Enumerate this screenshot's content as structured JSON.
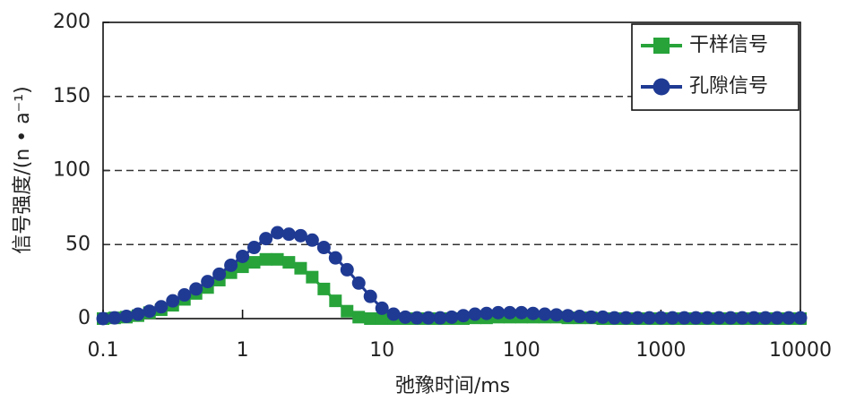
{
  "chart_data": {
    "type": "line",
    "xscale": "log",
    "xlabel": "弛豫时间/ms",
    "ylabel": "信号强度/(n • a⁻¹)",
    "x": [
      0.1,
      0.121,
      0.147,
      0.178,
      0.215,
      0.261,
      0.316,
      0.383,
      0.464,
      0.562,
      0.681,
      0.825,
      1,
      1.21,
      1.47,
      1.78,
      2.15,
      2.61,
      3.16,
      3.83,
      4.64,
      5.62,
      6.81,
      8.25,
      10,
      12.1,
      14.7,
      17.8,
      21.5,
      26.1,
      31.6,
      38.3,
      46.4,
      56.2,
      68.1,
      82.5,
      100,
      121,
      147,
      178,
      215,
      261,
      316,
      383,
      464,
      562,
      681,
      825,
      1000,
      1210,
      1470,
      1780,
      2150,
      2610,
      3160,
      3830,
      4640,
      5620,
      6810,
      8250,
      10000
    ],
    "series": [
      {
        "name": "干样信号",
        "color": "#27a33a",
        "marker": "square",
        "values": [
          0,
          0.5,
          1,
          2,
          4,
          6,
          9,
          13,
          17,
          21,
          26,
          31,
          35,
          38,
          40,
          40,
          38,
          34,
          28,
          20,
          12,
          5,
          1,
          0,
          0,
          0,
          0,
          0,
          0,
          0,
          0,
          0,
          0.5,
          0.5,
          1,
          1,
          1,
          1,
          1,
          1,
          0.5,
          0.5,
          0.5,
          0,
          0,
          0,
          0,
          0,
          0,
          0,
          0,
          0,
          0,
          0,
          0,
          0,
          0,
          0,
          0,
          0,
          0
        ]
      },
      {
        "name": "孔隙信号",
        "color": "#1f3a93",
        "marker": "circle",
        "values": [
          0,
          0.5,
          1.5,
          3,
          5,
          8,
          12,
          16,
          20,
          25,
          30,
          36,
          42,
          48,
          54,
          58,
          57,
          56,
          53,
          48,
          41,
          33,
          24,
          15,
          7,
          3,
          1,
          0.5,
          0.5,
          0.5,
          1,
          2,
          3,
          3.5,
          4,
          4,
          4,
          3.5,
          3,
          2.5,
          2,
          1.5,
          1,
          1,
          0.5,
          0.5,
          0.5,
          0.5,
          0.5,
          0.5,
          0.5,
          0.5,
          0.5,
          0.5,
          0.5,
          0.5,
          0.5,
          0.5,
          0.5,
          0.5,
          0.5
        ]
      }
    ],
    "xlim": [
      0.1,
      10000
    ],
    "xticks": [
      0.1,
      1,
      10,
      100,
      1000,
      10000
    ],
    "ylim": [
      0,
      200
    ],
    "yticks": [
      0,
      50,
      100,
      150,
      200
    ],
    "grid": true,
    "legend": "upper right"
  }
}
